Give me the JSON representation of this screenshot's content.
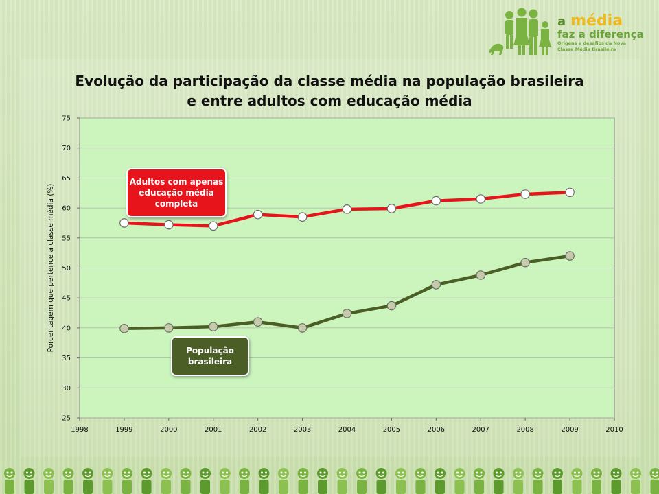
{
  "logo": {
    "line1_a": "a",
    "line1_media": "média",
    "line2": "faz a diferença",
    "sub1": "Origens e desafios da Nova",
    "sub2": "Classe Média Brasileira"
  },
  "title_line1": "Evolução da participação da classe média na população brasileira",
  "title_line2": "e entre adultos com educação média",
  "callouts": {
    "adults": "Adultos com apenas educação média completa",
    "population": "População brasileira"
  },
  "colors": {
    "adults": "#e8141c",
    "population": "#4a5e25",
    "plot_bg": "#ccf5be",
    "marker_fill": "#c5cba8"
  },
  "chart_data": {
    "type": "line",
    "title": "Evolução da participação da classe média na população brasileira e entre adultos com educação média",
    "xlabel": "",
    "ylabel": "Porcentagem que pertence a classe média (%)",
    "xlim": [
      1998,
      2010
    ],
    "ylim": [
      25,
      75
    ],
    "xticks": [
      1998,
      1999,
      2000,
      2001,
      2002,
      2003,
      2004,
      2005,
      2006,
      2007,
      2008,
      2009,
      2010
    ],
    "yticks": [
      25,
      30,
      35,
      40,
      45,
      50,
      55,
      60,
      65,
      70,
      75
    ],
    "grid": true,
    "series": [
      {
        "name": "Adultos com apenas educação média completa",
        "color": "#e8141c",
        "x": [
          1999,
          2000,
          2001,
          2002,
          2003,
          2004,
          2005,
          2006,
          2007,
          2008,
          2009
        ],
        "values": [
          57.5,
          57.2,
          57.0,
          58.9,
          58.5,
          59.8,
          59.9,
          61.2,
          61.5,
          62.3,
          62.6
        ]
      },
      {
        "name": "População brasileira",
        "color": "#4a5e25",
        "x": [
          1999,
          2000,
          2001,
          2002,
          2003,
          2004,
          2005,
          2006,
          2007,
          2008,
          2009
        ],
        "values": [
          39.9,
          40.0,
          40.2,
          41.0,
          40.0,
          42.4,
          43.7,
          47.2,
          48.8,
          50.9,
          52.0
        ]
      }
    ]
  }
}
